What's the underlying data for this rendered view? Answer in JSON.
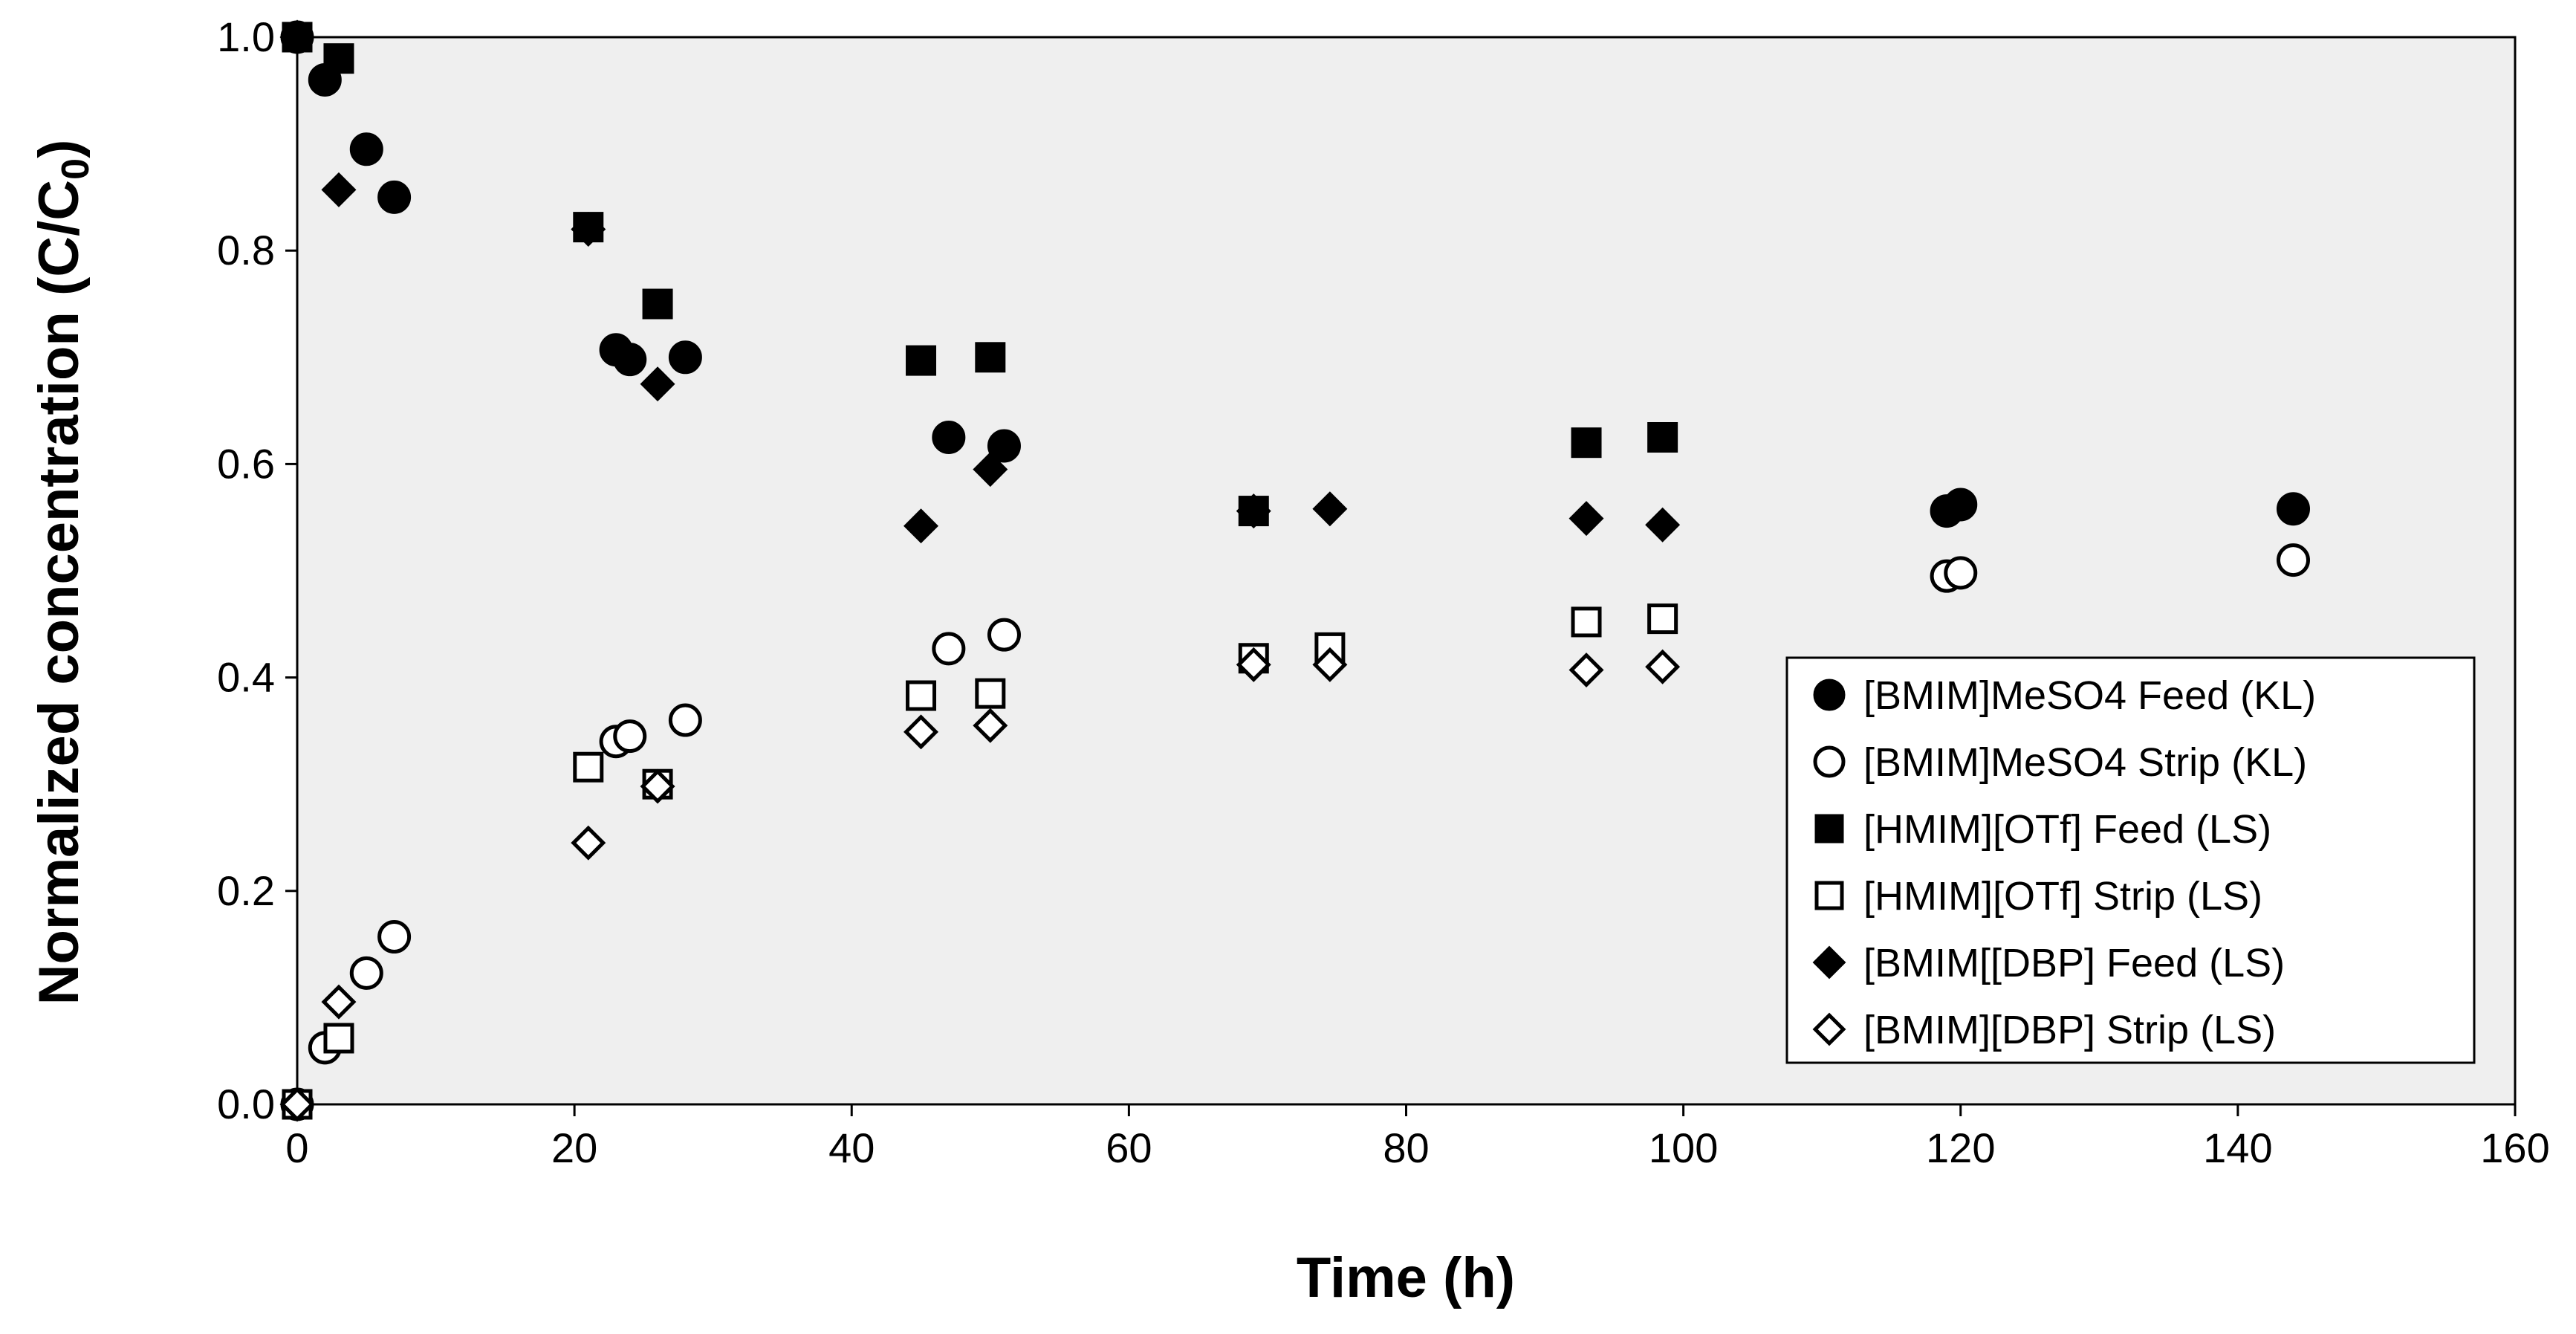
{
  "chart_data": {
    "type": "scatter",
    "title": "",
    "xlabel": "Time (h)",
    "ylabel_main": "Normalized concentration (C/C",
    "ylabel_sub": "0",
    "ylabel_close": ")",
    "xlim": [
      0,
      160
    ],
    "ylim": [
      0.0,
      1.0
    ],
    "xticks": [
      0,
      20,
      40,
      60,
      80,
      100,
      120,
      140,
      160
    ],
    "yticks": [
      "0.0",
      "0.2",
      "0.4",
      "0.6",
      "0.8",
      "1.0"
    ],
    "grid": false,
    "legend_position": "right",
    "series": [
      {
        "name": "[BMIM]MeSO4 Feed (KL)",
        "marker": "circle",
        "filled": true,
        "x": [
          0,
          2,
          5,
          7,
          23,
          24,
          28,
          47,
          51,
          119,
          120,
          144
        ],
        "y": [
          1.0,
          0.96,
          0.895,
          0.85,
          0.707,
          0.698,
          0.7,
          0.625,
          0.617,
          0.556,
          0.562,
          0.558
        ]
      },
      {
        "name": "[BMIM]MeSO4 Strip (KL)",
        "marker": "circle",
        "filled": false,
        "x": [
          0,
          2,
          5,
          7,
          23,
          24,
          28,
          47,
          51,
          119,
          120,
          144
        ],
        "y": [
          0.0,
          0.053,
          0.123,
          0.157,
          0.34,
          0.345,
          0.36,
          0.427,
          0.44,
          0.495,
          0.498,
          0.51
        ]
      },
      {
        "name": "[HMIM][OTf] Feed (LS)",
        "marker": "square",
        "filled": true,
        "x": [
          0,
          3,
          21,
          26,
          45,
          50,
          69,
          93,
          98.5
        ],
        "y": [
          1.0,
          0.98,
          0.822,
          0.75,
          0.697,
          0.7,
          0.556,
          0.62,
          0.625
        ]
      },
      {
        "name": "[HMIM][OTf] Strip (LS)",
        "marker": "square",
        "filled": false,
        "x": [
          0,
          3,
          21,
          26,
          45,
          50,
          69,
          74.5,
          93,
          98.5
        ],
        "y": [
          0.0,
          0.062,
          0.316,
          0.3,
          0.383,
          0.385,
          0.418,
          0.428,
          0.452,
          0.455
        ]
      },
      {
        "name": "[BMIM[[DBP] Feed (LS)",
        "marker": "diamond",
        "filled": true,
        "x": [
          0,
          3,
          21,
          26,
          45,
          50,
          69,
          74.5,
          93,
          98.5
        ],
        "y": [
          1.0,
          0.857,
          0.82,
          0.675,
          0.542,
          0.595,
          0.556,
          0.558,
          0.549,
          0.543
        ]
      },
      {
        "name": "[BMIM][DBP] Strip (LS)",
        "marker": "diamond",
        "filled": false,
        "x": [
          0,
          3,
          21,
          26,
          45,
          50,
          69,
          74.5,
          93,
          98.5
        ],
        "y": [
          0.0,
          0.096,
          0.245,
          0.298,
          0.349,
          0.355,
          0.412,
          0.412,
          0.407,
          0.41
        ]
      }
    ]
  }
}
